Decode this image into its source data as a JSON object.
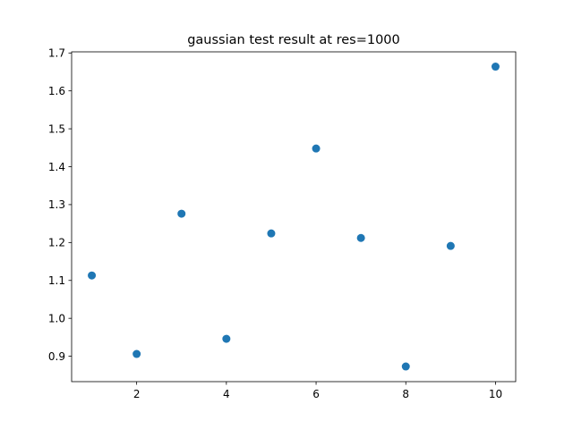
{
  "chart_data": {
    "type": "scatter",
    "title": "gaussian test result at res=1000",
    "xlabel": "",
    "ylabel": "",
    "x": [
      1,
      2,
      3,
      4,
      5,
      6,
      7,
      8,
      9,
      10
    ],
    "series": [
      {
        "values": [
          1.113,
          0.906,
          1.276,
          0.946,
          1.224,
          1.448,
          1.212,
          0.873,
          1.191,
          1.664
        ],
        "color": "#1f77b4"
      }
    ],
    "xlim": [
      0.55,
      10.45
    ],
    "ylim": [
      0.833,
      1.703
    ],
    "xticks": [
      2,
      4,
      6,
      8,
      10
    ],
    "xtick_labels": [
      "2",
      "4",
      "6",
      "8",
      "10"
    ],
    "yticks": [
      0.9,
      1.0,
      1.1,
      1.2,
      1.3,
      1.4,
      1.5,
      1.6,
      1.7
    ],
    "ytick_labels": [
      "0.9",
      "1.0",
      "1.1",
      "1.2",
      "1.3",
      "1.4",
      "1.5",
      "1.6",
      "1.7"
    ],
    "grid": false,
    "legend": "none"
  }
}
